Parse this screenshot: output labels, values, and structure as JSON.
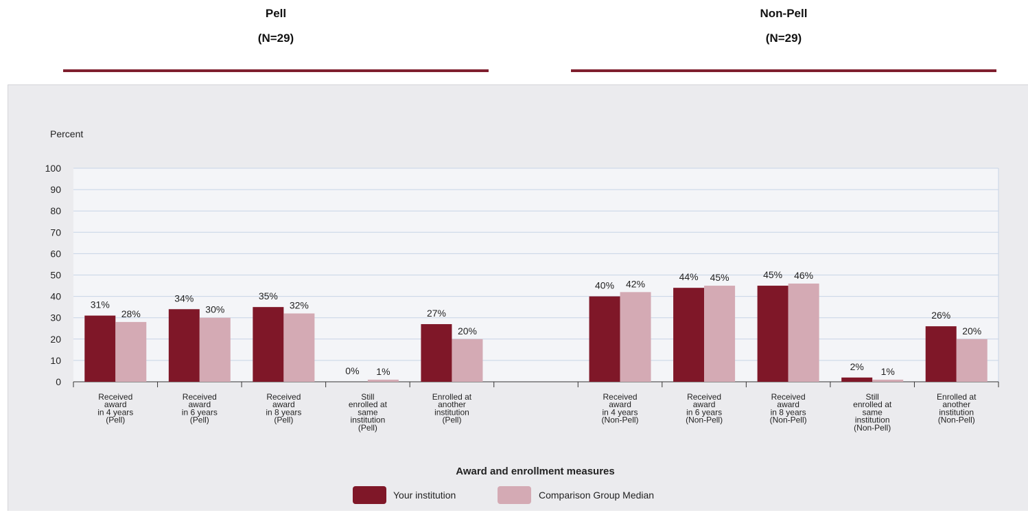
{
  "groups": [
    {
      "title": "Pell",
      "n": "(N=29)"
    },
    {
      "title": "Non-Pell",
      "n": "(N=29)"
    }
  ],
  "colors": {
    "institution": "#7f1728",
    "comparison": "#d4aab4",
    "rule": "#7f1f2e",
    "panel": "#ebebee",
    "plot": "#f4f5f8",
    "grid": "#c7d4e6"
  },
  "chart_data": {
    "type": "bar",
    "ylabel": "Percent",
    "xlabel": "Award and enrollment measures",
    "ylim": [
      0,
      100
    ],
    "yticks": [
      0,
      10,
      20,
      30,
      40,
      50,
      60,
      70,
      80,
      90,
      100
    ],
    "grid": true,
    "legend_position": "bottom",
    "categories": [
      [
        "Received",
        "award",
        "in 4 years",
        "(Pell)"
      ],
      [
        "Received",
        "award",
        "in 6 years",
        "(Pell)"
      ],
      [
        "Received",
        "award",
        "in 8 years",
        "(Pell)"
      ],
      [
        "Still",
        "enrolled at",
        "same",
        "institution",
        "(Pell)"
      ],
      [
        "Enrolled at",
        "another",
        "institution",
        "(Pell)"
      ],
      [],
      [
        "Received",
        "award",
        "in 4 years",
        "(Non-Pell)"
      ],
      [
        "Received",
        "award",
        "in 6 years",
        "(Non-Pell)"
      ],
      [
        "Received",
        "award",
        "in 8 years",
        "(Non-Pell)"
      ],
      [
        "Still",
        "enrolled at",
        "same",
        "institution",
        "(Non-Pell)"
      ],
      [
        "Enrolled at",
        "another",
        "institution",
        "(Non-Pell)"
      ]
    ],
    "series": [
      {
        "name": "Your institution",
        "values": [
          31,
          34,
          35,
          0,
          27,
          null,
          40,
          44,
          45,
          2,
          26
        ],
        "labels": [
          "31%",
          "34%",
          "35%",
          "0%",
          "27%",
          "",
          "40%",
          "44%",
          "45%",
          "2%",
          "26%"
        ]
      },
      {
        "name": "Comparison Group Median",
        "values": [
          28,
          30,
          32,
          1,
          20,
          null,
          42,
          45,
          46,
          1,
          20
        ],
        "labels": [
          "28%",
          "30%",
          "32%",
          "1%",
          "20%",
          "",
          "42%",
          "45%",
          "46%",
          "1%",
          "20%"
        ]
      }
    ]
  }
}
